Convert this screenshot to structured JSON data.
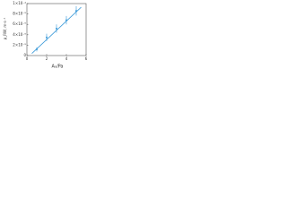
{
  "chart_data": {
    "type": "scatter",
    "x_label": "A₀/Pa",
    "y_label": "ρ_RW, m·s⁻¹",
    "x": [
      1,
      2,
      3,
      4,
      5
    ],
    "series": [
      {
        "color": "#3a9ad9",
        "values": [
          1.2e-05,
          3.5e-05,
          5.2e-05,
          6.8e-05,
          8.6e-05
        ],
        "errors": [
          4e-06,
          7e-06,
          8e-06,
          8e-06,
          9e-06
        ]
      }
    ],
    "fit": {
      "color": "#3a9ad9",
      "x": [
        0.5,
        5.5
      ],
      "values": [
        4e-06,
        9.3e-05
      ]
    },
    "xlim": [
      0,
      6
    ],
    "xticks": [
      0,
      2,
      4,
      6
    ],
    "ylim": [
      0,
      0.0001
    ],
    "yticks": [
      {
        "value": 0,
        "label": "0"
      },
      {
        "value": 2e-05,
        "label": "2×10⁻⁵"
      },
      {
        "value": 4e-05,
        "label": "4×10⁻⁵"
      },
      {
        "value": 6e-05,
        "label": "6×10⁻⁵"
      },
      {
        "value": 8e-05,
        "label": "8×10⁻⁵"
      },
      {
        "value": 0.0001,
        "label": "1×10⁻⁴"
      }
    ]
  }
}
